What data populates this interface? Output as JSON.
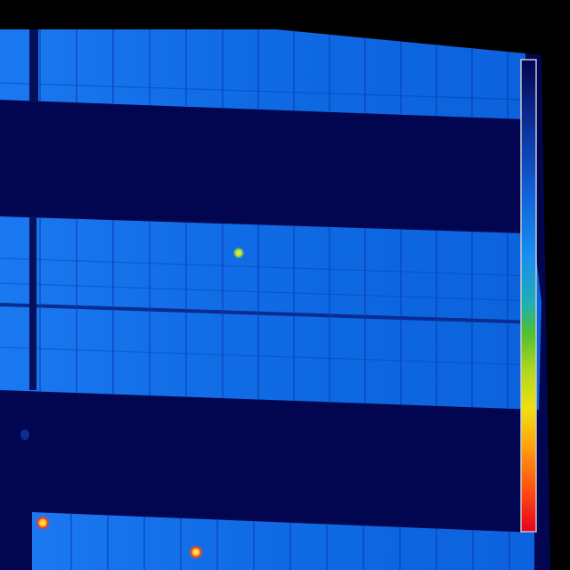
{
  "image": {
    "kind": "thermal infrared aerial view of solar panel rows",
    "colors": {
      "background": "#000000",
      "ground": "#020550",
      "panel": "#0a64e0",
      "panel_light": "#1a78f0",
      "cell_line": "#0a3aa8",
      "hotspot_green": "#c8e628",
      "hotspot_red": "#ff3a1a",
      "hotspot_yellow": "#ffe840"
    },
    "color_scale": {
      "gradient": [
        "#020550",
        "#0a2a90",
        "#1060d8",
        "#1890f0",
        "#20b0b0",
        "#50c030",
        "#b0d820",
        "#f0e010",
        "#ffa010",
        "#ff5010",
        "#e80020"
      ]
    },
    "panel_rows": 3,
    "hotspot_count": 3
  }
}
